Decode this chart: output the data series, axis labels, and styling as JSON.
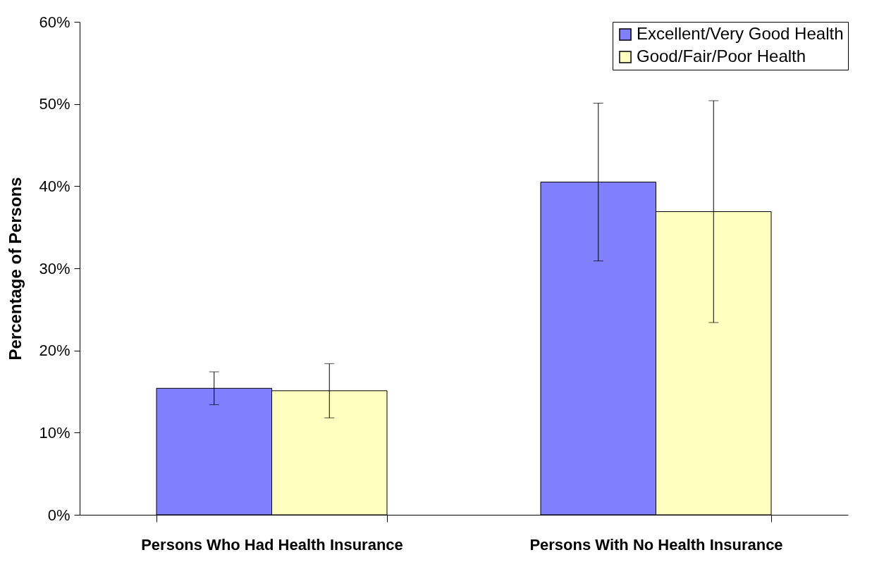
{
  "chart_data": {
    "type": "bar",
    "ylabel": "Percentage of Persons",
    "categories": [
      "Persons Who Had Health Insurance",
      "Persons With No Health Insurance"
    ],
    "series": [
      {
        "name": "Excellent/Very Good Health",
        "color": "#8080ff",
        "values": [
          15.4,
          40.5
        ],
        "errors": [
          [
            13.4,
            17.4
          ],
          [
            30.9,
            50.1
          ]
        ]
      },
      {
        "name": "Good/Fair/Poor Health",
        "color": "#ffffc0",
        "values": [
          15.1,
          36.9
        ],
        "errors": [
          [
            11.8,
            18.4
          ],
          [
            23.4,
            50.4
          ]
        ]
      }
    ],
    "ylim": [
      0,
      60
    ],
    "yticks": [
      {
        "value": 0,
        "label": "0%"
      },
      {
        "value": 10,
        "label": "10%"
      },
      {
        "value": 20,
        "label": "20%"
      },
      {
        "value": 30,
        "label": "30%"
      },
      {
        "value": 40,
        "label": "40%"
      },
      {
        "value": 50,
        "label": "50%"
      },
      {
        "value": 60,
        "label": "60%"
      }
    ],
    "grid": false,
    "legend": "top right"
  }
}
